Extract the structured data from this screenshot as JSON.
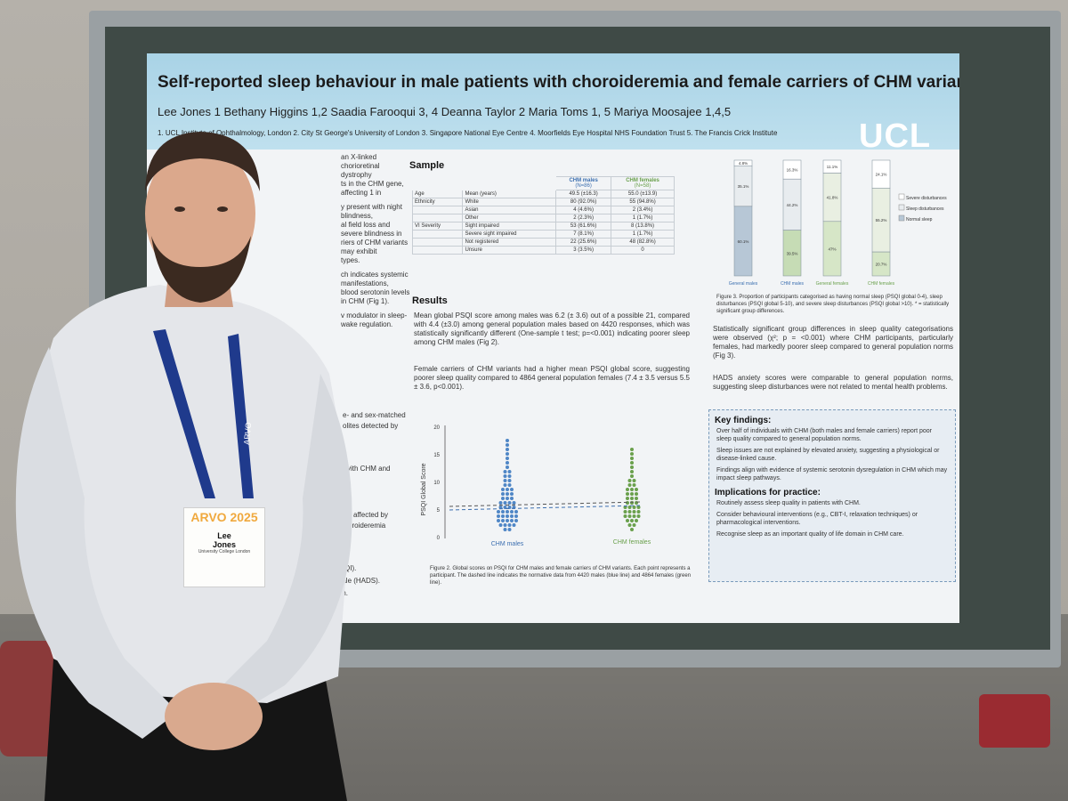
{
  "poster": {
    "title": "Self-reported sleep behaviour in male patients with choroideremia and female carriers of CHM variants",
    "authors": "Lee Jones 1  Bethany Higgins 1,2  Saadia Farooqui 3, 4  Deanna Taylor 2  Maria Toms 1, 5  Mariya Moosajee 1,4,5",
    "affiliations": "1. UCL Institute of Ophthalmology, London  2. City St George's University of London  3. Singapore National Eye Centre  4. Moorfields Eye Hospital NHS Foundation Trust  5. The Francis Crick Institute",
    "logo": "UCL",
    "intro_line1": "an X-linked chorioretinal dystrophy",
    "intro_line2": "ts in the CHM gene, affecting 1 in",
    "intro_line3": "y present with night blindness,",
    "intro_line4": "al field loss and severe blindness in",
    "intro_line5": "riers of CHM variants may exhibit",
    "intro_line6": "types.",
    "intro_line7": "ch indicates systemic manifestations,",
    "intro_line8": "blood serotonin levels in CHM (Fig 1).",
    "intro_line9": "v modulator in sleep-wake regulation.",
    "sample_heading": "Sample",
    "table": {
      "col1": "CHM males",
      "col1_n": "(N=86)",
      "col2": "CHM females",
      "col2_n": "(N=58)",
      "rows": [
        [
          "Age",
          "Mean (years)",
          "49.5 (±16.3)",
          "55.0 (±13.9)"
        ],
        [
          "Ethnicity",
          "White",
          "80 (92.0%)",
          "55 (94.8%)"
        ],
        [
          "",
          "Asian",
          "4 (4.6%)",
          "2 (3.4%)"
        ],
        [
          "",
          "Other",
          "2 (2.3%)",
          "1 (1.7%)"
        ],
        [
          "VI Severity",
          "Sight impaired",
          "53 (61.6%)",
          "8 (13.8%)"
        ],
        [
          "",
          "Severe sight impaired",
          "7 (8.1%)",
          "1 (1.7%)"
        ],
        [
          "",
          "Not registered",
          "22 (25.6%)",
          "48 (82.8%)"
        ],
        [
          "",
          "Unsure",
          "3 (3.5%)",
          "0"
        ]
      ]
    },
    "results_heading": "Results",
    "results_p1": "Mean global PSQI score among males was 6.2 (± 3.6) out of a possible 21, compared with 4.4 (±3.0) among general population males based on 4420 responses, which was statistically significantly different (One-sample t test; p=<0.001) indicating poorer sleep among CHM males (Fig 2).",
    "results_p2": "Female carriers of CHM variants had a higher mean PSQI global score, suggesting poorer sleep quality compared to 4864 general population females (7.4 ± 3.5 versus 5.5 ± 3.6, p<0.001).",
    "fig2_ylabel": "PSQI Global Score",
    "fig2_yticks": [
      "20",
      "15",
      "10",
      "5",
      "0"
    ],
    "fig2_x1": "CHM males",
    "fig2_x2": "CHM females",
    "fig2_caption": "Figure 2. Global scores on PSQI for CHM males and female carriers of CHM variants. Each point represents a participant. The dashed line indicates the normative data from 4420 males (blue line) and 4864 females (green line).",
    "fig3_caption": "Figure 3. Proportion of participants categorised as having normal sleep (PSQI global 0-4), sleep disturbances (PSQI global 5-10), and severe sleep disturbances (PSQI global >10). * = statistically significant group differences.",
    "fig3_bars": [
      {
        "label": "General males",
        "top": "4.8%",
        "mid": "35.1%",
        "bot": "60.1%"
      },
      {
        "label": "CHM males",
        "top": "16.3%",
        "mid": "44.2%",
        "bot": "39.5%"
      },
      {
        "label": "General females",
        "top": "11.1%",
        "mid": "41.8%",
        "bot": "47%"
      },
      {
        "label": "CHM females",
        "top": "24.1%",
        "mid": "55.2%",
        "bot": "20.7%"
      }
    ],
    "fig3_legend": [
      "Severe disturbances",
      "Sleep disturbances",
      "Normal sleep"
    ],
    "right_p1": "Statistically significant group differences in sleep quality categorisations were observed (χ²; p = <0.001) where CHM participants, particularly females, had markedly poorer sleep compared to general population norms (Fig 3).",
    "right_p2": "HADS anxiety scores were comparable to general population norms, suggesting sleep disturbances were not related to mental health problems.",
    "key_heading": "Key findings:",
    "key_1": "Over half of individuals with CHM (both males and female carriers) report poor sleep quality compared to general population norms.",
    "key_2": "Sleep issues are not explained by elevated anxiety, suggesting a physiological or disease-linked cause.",
    "key_3": "Findings align with evidence of systemic serotonin dysregulation in CHM which may impact sleep pathways.",
    "impl_heading": "Implications for practice:",
    "impl_1": "Routinely assess sleep quality in patients with CHM.",
    "impl_2": "Consider behavioural interventions (e.g., CBT-I, relaxation techniques) or pharmacological interventions.",
    "impl_3": "Recognise sleep as an important quality of life domain in CHM care.",
    "left_frag1": "e- and sex-matched",
    "left_frag2": "olites detected by",
    "left_frag3": "vith CHM and",
    "left_frag4": "affected by",
    "left_frag5": "oroideremia",
    "left_frag6": "QI).",
    "left_frag7": "Scale (HADS).",
    "left_frag8": "orm."
  },
  "badge": {
    "event": "ARVO 2025",
    "name_line1": "Lee",
    "name_line2": "Jones",
    "affiliation": "University College London"
  },
  "lanyard_text": "ARVO"
}
